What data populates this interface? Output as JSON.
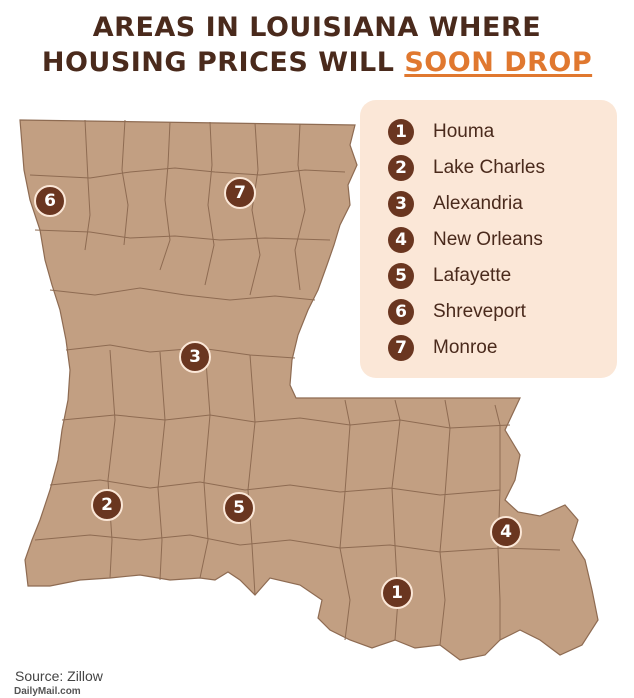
{
  "title": {
    "line1": "AREAS IN LOUISIANA WHERE",
    "line2_prefix": "HOUSING PRICES WILL ",
    "line2_highlight": "SOON DROP"
  },
  "colors": {
    "land": "#c29f82",
    "border": "#8e6b52",
    "marker": "#6a3620",
    "legend_bg": "#fbe7d7",
    "title": "#4a2a1c",
    "highlight": "#e0782f"
  },
  "legend": {
    "items": [
      {
        "num": "1",
        "label": "Houma"
      },
      {
        "num": "2",
        "label": "Lake Charles"
      },
      {
        "num": "3",
        "label": "Alexandria"
      },
      {
        "num": "4",
        "label": "New Orleans"
      },
      {
        "num": "5",
        "label": "Lafayette"
      },
      {
        "num": "6",
        "label": "Shreveport"
      },
      {
        "num": "7",
        "label": "Monroe"
      }
    ]
  },
  "markers": [
    {
      "num": "1",
      "city": "Houma"
    },
    {
      "num": "2",
      "city": "Lake Charles"
    },
    {
      "num": "3",
      "city": "Alexandria"
    },
    {
      "num": "4",
      "city": "New Orleans"
    },
    {
      "num": "5",
      "city": "Lafayette"
    },
    {
      "num": "6",
      "city": "Shreveport"
    },
    {
      "num": "7",
      "city": "Monroe"
    }
  ],
  "source": "Source: Zillow",
  "credit": "DailyMail.com"
}
